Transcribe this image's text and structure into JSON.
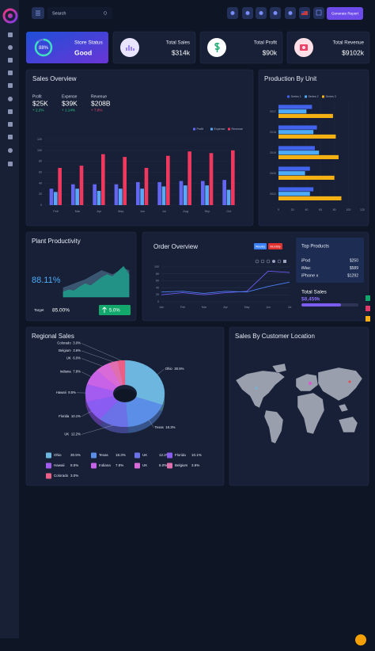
{
  "search_placeholder": "Search",
  "generate_report": "Generate Report",
  "store_status": {
    "label": "Store Status",
    "value": "Good",
    "percent": 88,
    "percent_label": "88%"
  },
  "kpis": [
    {
      "label": "Total Sales",
      "value": "$314k"
    },
    {
      "label": "Total Profit",
      "value": "$90k"
    },
    {
      "label": "Total Revenue",
      "value": "$9102k"
    }
  ],
  "sales_stats": [
    {
      "label": "Profit",
      "value": "$25K",
      "change": "+ 2.2%",
      "color": "#2fd18a"
    },
    {
      "label": "Expense",
      "value": "$39K",
      "change": "+ 1.14%",
      "color": "#2fd18a"
    },
    {
      "label": "Revenue",
      "value": "$208B",
      "change": "+ 7.8%",
      "color": "#f0476b"
    }
  ],
  "plant": {
    "value": "88.11%",
    "target_label": "Target",
    "target": "85.00%",
    "change": "5.0%"
  },
  "order_tabs": [
    "Weekly",
    "Monthly"
  ],
  "top_products": {
    "title": "Top Products",
    "items": [
      {
        "name": "iPod",
        "price": "$250"
      },
      {
        "name": "iMac",
        "price": "$589"
      },
      {
        "name": "iPhone x",
        "price": "$1292"
      }
    ],
    "total_label": "Total Sales",
    "total": "$8,459k"
  },
  "map": {
    "title": "Sales By Customer Location"
  },
  "chart_data": [
    {
      "type": "bar",
      "title": "Sales Overview",
      "categories": [
        "Feb",
        "Mar",
        "Apr",
        "May",
        "Jun",
        "Jul",
        "Aug",
        "Sep",
        "Oct"
      ],
      "series": [
        {
          "name": "Profit",
          "color": "#6366f1",
          "values": [
            30,
            38,
            38,
            38,
            42,
            42,
            44,
            44,
            46
          ]
        },
        {
          "name": "Expense",
          "color": "#5aa8f5",
          "values": [
            24,
            30,
            26,
            30,
            30,
            34,
            36,
            36,
            28
          ]
        },
        {
          "name": "Revenue",
          "color": "#f0385e",
          "values": [
            68,
            72,
            93,
            88,
            68,
            90,
            98,
            95,
            100
          ]
        }
      ],
      "ylim": [
        0,
        120
      ],
      "yticks": [
        0,
        20,
        40,
        60,
        80,
        100,
        120
      ],
      "grid": true,
      "legend": "top-right"
    },
    {
      "type": "bar",
      "orientation": "horizontal",
      "title": "Production By Unit",
      "categories": [
        "2017",
        "2018",
        "2019",
        "2020",
        "2021"
      ],
      "series": [
        {
          "name": "Series 1",
          "color": "#4263eb",
          "values": [
            48,
            55,
            52,
            45,
            50
          ]
        },
        {
          "name": "Series 2",
          "color": "#4dabf7",
          "values": [
            40,
            50,
            58,
            38,
            45
          ]
        },
        {
          "name": "Series 3",
          "color": "#f5b014",
          "values": [
            78,
            82,
            86,
            80,
            90
          ]
        }
      ],
      "xlim": [
        0,
        120
      ],
      "xticks": [
        0,
        20,
        40,
        60,
        80,
        100,
        120
      ],
      "grid": true,
      "legend": "top"
    },
    {
      "type": "area",
      "title": "Plant Productivity",
      "series": [
        {
          "color": "#3f5f7a",
          "values": [
            18,
            22,
            26,
            30,
            34,
            40,
            46,
            52,
            48,
            44,
            50,
            56,
            52
          ]
        },
        {
          "color": "#1f9d8a",
          "values": [
            10,
            14,
            12,
            20,
            26,
            22,
            30,
            38,
            44,
            40,
            50,
            60,
            44
          ]
        }
      ],
      "ylim": [
        0,
        70
      ]
    },
    {
      "type": "line",
      "title": "Order Overview",
      "categories": [
        "Jan",
        "Feb",
        "Mar",
        "Apr",
        "May",
        "Jun",
        "Jul"
      ],
      "series": [
        {
          "color": "#6d5cf6",
          "values": [
            20,
            26,
            20,
            26,
            30,
            88,
            84
          ]
        },
        {
          "color": "#4c7ef5",
          "values": [
            28,
            30,
            24,
            30,
            28,
            44,
            56
          ]
        }
      ],
      "ylim": [
        0,
        100
      ],
      "yticks": [
        0,
        20,
        40,
        60,
        80,
        100
      ],
      "grid": true
    },
    {
      "type": "pie",
      "title": "Regional Sales",
      "categories": [
        "Ohio",
        "Texas",
        "UK",
        "Florida",
        "Hawaii",
        "Indiana",
        "UK",
        "Belgium",
        "Colorado"
      ],
      "values": [
        30.5,
        18.3,
        12.2,
        10.1,
        8.5,
        7.8,
        6.0,
        3.6,
        3.0
      ],
      "value_labels": [
        "30.5%",
        "18.3%",
        "12.2%",
        "10.1%",
        "8.5%",
        "7.8%",
        "6.0%",
        "3.6%",
        "3.0%"
      ],
      "colors": [
        "#6cb6e0",
        "#5b8ee6",
        "#6b72e8",
        "#8a5cf2",
        "#a45cf0",
        "#c862e6",
        "#d86bd8",
        "#e06fb0",
        "#ea5f86"
      ]
    }
  ]
}
